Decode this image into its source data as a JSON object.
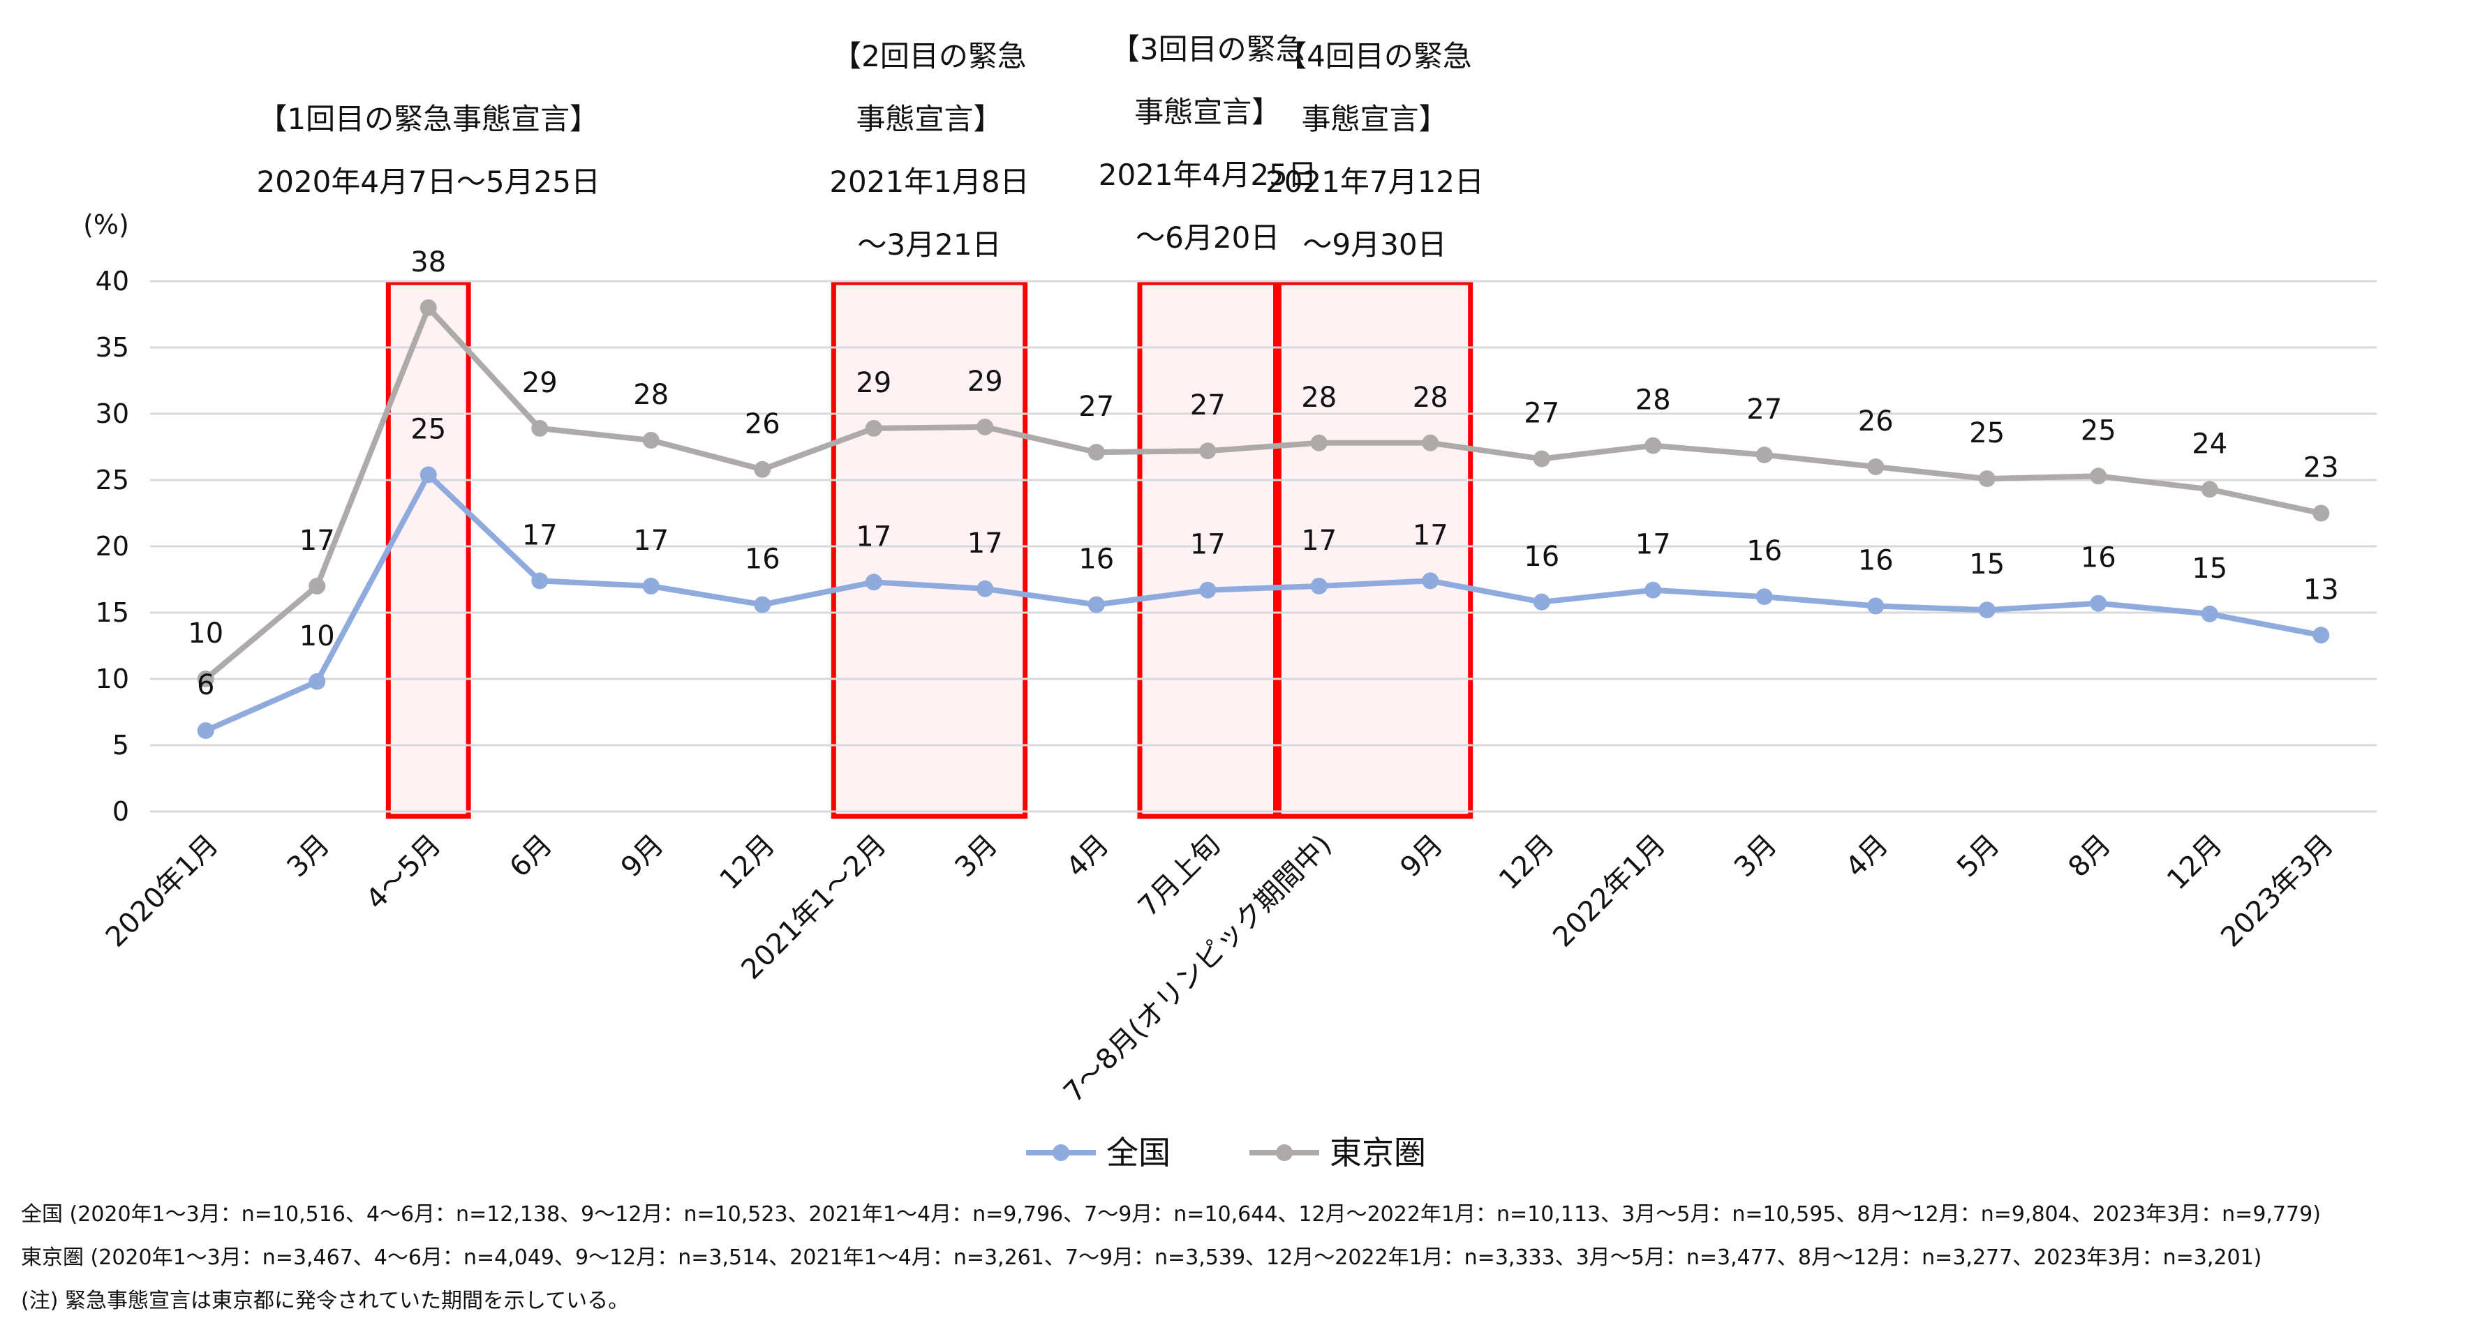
{
  "chart_data": {
    "type": "line",
    "y_unit": "(%)",
    "ylim": [
      0,
      40
    ],
    "yticks": [
      0,
      5,
      10,
      15,
      20,
      25,
      30,
      35,
      40
    ],
    "grid": true,
    "legend_position": "bottom-center",
    "categories": [
      "2020年1月",
      "3月",
      "4～5月",
      "6月",
      "9月",
      "12月",
      "2021年1～2月",
      "3月",
      "4月",
      "7月上旬",
      "7～8月(オリンピック期間中)",
      "9月",
      "12月",
      "2022年1月",
      "3月",
      "4月",
      "5月",
      "8月",
      "12月",
      "2023年3月"
    ],
    "series": [
      {
        "name": "全国",
        "color": "#8faadc",
        "values": [
          6.1,
          9.8,
          25.4,
          17.4,
          17.0,
          15.6,
          17.3,
          16.8,
          15.6,
          16.7,
          17.0,
          17.4,
          15.8,
          16.7,
          16.2,
          15.5,
          15.2,
          15.7,
          14.9,
          13.3
        ],
        "labels": [
          "6",
          "10",
          "25",
          "17",
          "17",
          "16",
          "17",
          "17",
          "16",
          "17",
          "17",
          "17",
          "16",
          "17",
          "16",
          "16",
          "15",
          "16",
          "15",
          "13"
        ]
      },
      {
        "name": "東京圏",
        "color": "#aeaaaa",
        "values": [
          10.0,
          17.0,
          38.0,
          28.9,
          28.0,
          25.8,
          28.9,
          29.0,
          27.1,
          27.2,
          27.8,
          27.8,
          26.6,
          27.6,
          26.9,
          26.0,
          25.1,
          25.3,
          24.3,
          22.5
        ],
        "labels": [
          "10",
          "17",
          "38",
          "29",
          "28",
          "26",
          "29",
          "29",
          "27",
          "27",
          "28",
          "28",
          "27",
          "28",
          "27",
          "26",
          "25",
          "25",
          "24",
          "23"
        ]
      }
    ],
    "highlights": [
      {
        "lines": [
          "【1回目の緊急事態宣言】",
          "2020年4月7日～5月25日"
        ],
        "start": 2,
        "end": 2
      },
      {
        "lines": [
          "【2回目の緊急",
          "事態宣言】",
          "2021年1月8日",
          "～3月21日"
        ],
        "start": 6,
        "end": 7
      },
      {
        "lines": [
          "【3回目の緊急",
          "事態宣言】",
          "2021年4月25日",
          "～6月20日"
        ],
        "start": 8.75,
        "end": 9.25
      },
      {
        "lines": [
          "【4回目の緊急",
          "事態宣言】",
          "2021年7月12日",
          "～9月30日"
        ],
        "start": 10,
        "end": 11
      }
    ],
    "highlight_color": "#ff0000"
  },
  "notes": [
    "全国 (2020年1～3月：n=10,516、4～6月：n=12,138、9～12月：n=10,523、2021年1～4月：n=9,796、7～9月：n=10,644、12月～2022年1月：n=10,113、3月～5月：n=10,595、8月～12月：n=9,804、2023年3月：n=9,779)",
    "東京圏 (2020年1～3月：n=3,467、4～6月：n=4,049、9～12月：n=3,514、2021年1～4月：n=3,261、7～9月：n=3,539、12月～2022年1月：n=3,333、3月～5月：n=3,477、8月～12月：n=3,277、2023年3月：n=3,201)",
    "(注) 緊急事態宣言は東京都に発令されていた期間を示している。"
  ]
}
